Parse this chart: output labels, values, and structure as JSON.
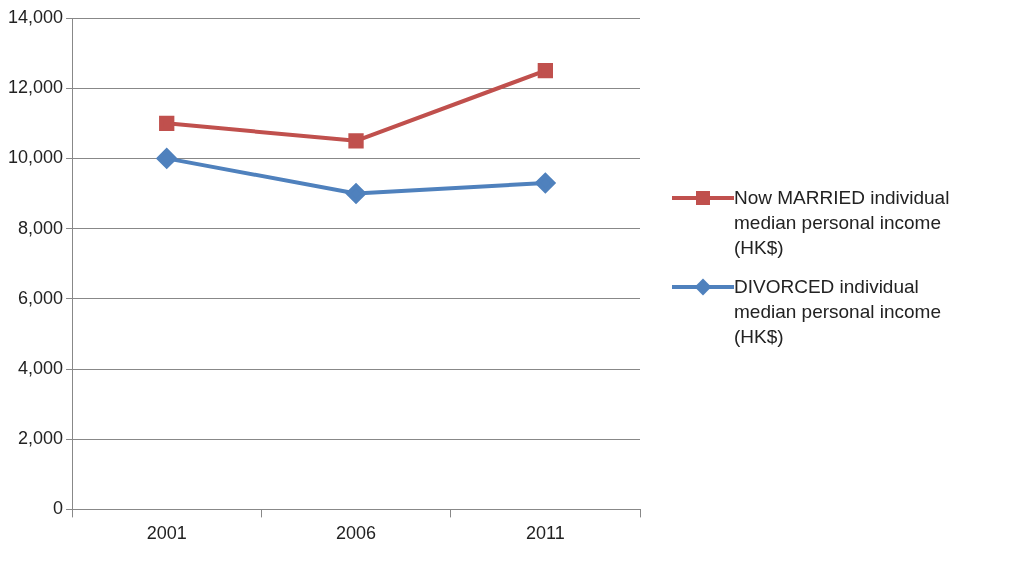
{
  "chart_data": {
    "type": "line",
    "categories": [
      "2001",
      "2006",
      "2011"
    ],
    "series": [
      {
        "name": "Now MARRIED individual median personal income (HK$)",
        "color": "#c0504d",
        "values": [
          11000,
          10500,
          12500
        ],
        "marker": "square"
      },
      {
        "name": "DIVORCED individual median personal income (HK$)",
        "color": "#4f81bd",
        "values": [
          10000,
          9000,
          9300
        ],
        "marker": "diamond"
      }
    ],
    "ylim": [
      0,
      14000
    ],
    "yticks": [
      {
        "value": 0,
        "label": "0"
      },
      {
        "value": 2000,
        "label": "2,000"
      },
      {
        "value": 4000,
        "label": "4,000"
      },
      {
        "value": 6000,
        "label": "6,000"
      },
      {
        "value": 8000,
        "label": "8,000"
      },
      {
        "value": 10000,
        "label": "10,000"
      },
      {
        "value": 12000,
        "label": "12,000"
      },
      {
        "value": 14000,
        "label": "14,000"
      }
    ],
    "grid": "y",
    "legend": "right",
    "line_style": "solid"
  }
}
